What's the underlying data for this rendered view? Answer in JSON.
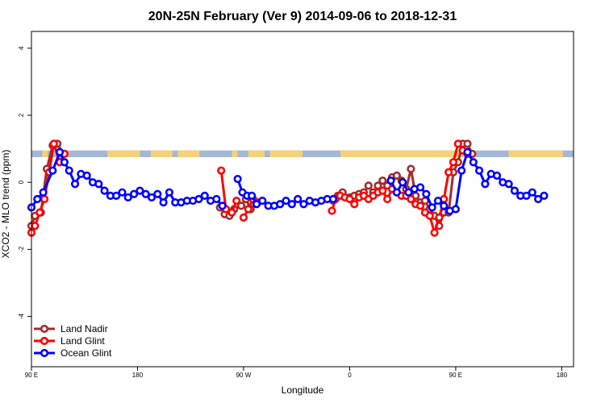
{
  "chart_data": {
    "type": "line",
    "title": "20N-25N February (Ver 9)   2014-09-06 to 2018-12-31",
    "xlabel": "Longitude",
    "ylabel": "XCO2 - MLO trend (ppm)",
    "xlim": [
      0,
      460
    ],
    "ylim": [
      -5.5,
      4.5
    ],
    "x_ticks": [
      {
        "value": 0,
        "label": "90 E"
      },
      {
        "value": 90,
        "label": "180"
      },
      {
        "value": 180,
        "label": "90 W"
      },
      {
        "value": 270,
        "label": "0"
      },
      {
        "value": 360,
        "label": "90 E"
      },
      {
        "value": 450,
        "label": "180"
      }
    ],
    "y_ticks": [
      {
        "value": -4,
        "label": "-4"
      },
      {
        "value": -2,
        "label": "-2"
      },
      {
        "value": 0,
        "label": "0"
      },
      {
        "value": 2,
        "label": "2"
      },
      {
        "value": 4,
        "label": "4"
      }
    ],
    "landmask_band": {
      "y_range": [
        0.75,
        0.95
      ],
      "ocean_color": "#a4b8d6",
      "land_color": "#f5d27a"
    },
    "legend_position": "bottom-left",
    "series": [
      {
        "name": "Land Nadir",
        "color": "#a52a2a",
        "segments": [
          [
            [
              0,
              -1.3
            ],
            [
              3,
              -1.0
            ],
            [
              8,
              -0.9
            ],
            [
              13,
              0.4
            ],
            [
              18,
              1.1
            ],
            [
              22,
              1.15
            ],
            [
              27,
              0.85
            ]
          ],
          [
            [
              160,
              -0.75
            ],
            [
              164,
              -0.95
            ],
            [
              168,
              -1.0
            ],
            [
              172,
              -0.8
            ],
            [
              178,
              -0.7
            ],
            [
              182,
              -0.5
            ],
            [
              186,
              -0.8
            ]
          ],
          [
            [
              256,
              -0.55
            ],
            [
              260,
              -0.4
            ],
            [
              264,
              -0.3
            ],
            [
              270,
              -0.45
            ],
            [
              274,
              -0.4
            ],
            [
              278,
              -0.35
            ],
            [
              282,
              -0.3
            ],
            [
              286,
              -0.1
            ],
            [
              290,
              -0.3
            ],
            [
              294,
              -0.1
            ],
            [
              298,
              0.05
            ],
            [
              302,
              -0.1
            ],
            [
              306,
              0.15
            ],
            [
              310,
              0.2
            ],
            [
              314,
              0.05
            ],
            [
              318,
              -0.2
            ],
            [
              322,
              0.4
            ],
            [
              326,
              -0.4
            ],
            [
              330,
              -0.6
            ],
            [
              334,
              -0.55
            ],
            [
              338,
              -0.8
            ],
            [
              342,
              -1.0
            ],
            [
              346,
              -1.3
            ],
            [
              350,
              -0.9
            ],
            [
              354,
              -0.9
            ],
            [
              358,
              0.3
            ],
            [
              362,
              0.6
            ],
            [
              366,
              1.15
            ],
            [
              370,
              1.15
            ],
            [
              374,
              0.85
            ]
          ]
        ]
      },
      {
        "name": "Land Glint",
        "color": "#ff0000",
        "segments": [
          [
            [
              0,
              -1.5
            ],
            [
              3,
              -1.3
            ],
            [
              7,
              -0.9
            ],
            [
              11,
              -0.5
            ],
            [
              15,
              0.3
            ],
            [
              19,
              1.15
            ],
            [
              24,
              0.6
            ],
            [
              28,
              0.85
            ]
          ],
          [
            [
              161,
              0.35
            ],
            [
              165,
              -0.8
            ],
            [
              170,
              -0.9
            ],
            [
              174,
              -0.55
            ]
          ],
          [
            [
              180,
              -1.05
            ],
            [
              184,
              -0.8
            ],
            [
              188,
              -0.5
            ],
            [
              192,
              -0.6
            ]
          ],
          [
            [
              255,
              -0.85
            ],
            [
              258,
              -0.5
            ],
            [
              262,
              -0.4
            ],
            [
              266,
              -0.45
            ],
            [
              270,
              -0.5
            ],
            [
              274,
              -0.65
            ],
            [
              278,
              -0.45
            ],
            [
              282,
              -0.4
            ],
            [
              286,
              -0.5
            ],
            [
              290,
              -0.4
            ],
            [
              294,
              -0.3
            ],
            [
              298,
              -0.25
            ],
            [
              302,
              -0.5
            ],
            [
              306,
              -0.2
            ],
            [
              310,
              -0.3
            ],
            [
              314,
              -0.4
            ],
            [
              318,
              -0.4
            ],
            [
              322,
              -0.5
            ],
            [
              326,
              -0.65
            ],
            [
              330,
              -0.7
            ],
            [
              334,
              -0.9
            ],
            [
              338,
              -1.0
            ],
            [
              342,
              -1.5
            ],
            [
              346,
              -1.05
            ],
            [
              350,
              -0.5
            ],
            [
              354,
              0.3
            ],
            [
              358,
              0.6
            ],
            [
              362,
              1.15
            ],
            [
              366,
              0.95
            ],
            [
              370,
              0.85
            ]
          ]
        ]
      },
      {
        "name": "Ocean Glint",
        "color": "#0000ff",
        "segments": [
          [
            [
              0,
              -0.75
            ],
            [
              5,
              -0.5
            ],
            [
              10,
              -0.3
            ],
            [
              18,
              0.35
            ],
            [
              24,
              0.9
            ],
            [
              28,
              0.6
            ],
            [
              32,
              0.35
            ],
            [
              37,
              -0.05
            ],
            [
              42,
              0.25
            ],
            [
              47,
              0.2
            ],
            [
              52,
              0.0
            ],
            [
              57,
              -0.05
            ],
            [
              62,
              -0.25
            ],
            [
              67,
              -0.4
            ],
            [
              72,
              -0.4
            ],
            [
              77,
              -0.3
            ],
            [
              82,
              -0.45
            ],
            [
              87,
              -0.35
            ],
            [
              92,
              -0.25
            ],
            [
              97,
              -0.35
            ],
            [
              102,
              -0.45
            ],
            [
              107,
              -0.35
            ],
            [
              112,
              -0.6
            ],
            [
              117,
              -0.3
            ],
            [
              122,
              -0.6
            ],
            [
              127,
              -0.6
            ],
            [
              132,
              -0.55
            ],
            [
              137,
              -0.55
            ],
            [
              142,
              -0.5
            ],
            [
              147,
              -0.4
            ],
            [
              152,
              -0.55
            ],
            [
              157,
              -0.5
            ],
            [
              162,
              -0.7
            ]
          ],
          [
            [
              175,
              0.1
            ],
            [
              179,
              -0.3
            ],
            [
              183,
              -0.4
            ],
            [
              187,
              -0.4
            ],
            [
              191,
              -0.65
            ],
            [
              196,
              -0.55
            ],
            [
              201,
              -0.7
            ],
            [
              206,
              -0.7
            ],
            [
              211,
              -0.65
            ],
            [
              216,
              -0.55
            ],
            [
              221,
              -0.65
            ],
            [
              226,
              -0.5
            ],
            [
              231,
              -0.65
            ],
            [
              236,
              -0.55
            ],
            [
              241,
              -0.6
            ],
            [
              246,
              -0.55
            ],
            [
              251,
              -0.5
            ],
            [
              256,
              -0.5
            ]
          ],
          [
            [
              305,
              0.05
            ],
            [
              310,
              -0.3
            ],
            [
              315,
              0.0
            ],
            [
              320,
              -0.3
            ],
            [
              325,
              -0.2
            ],
            [
              330,
              -0.15
            ],
            [
              335,
              -0.35
            ],
            [
              340,
              -0.75
            ],
            [
              345,
              -0.55
            ],
            [
              350,
              -0.7
            ],
            [
              355,
              -0.85
            ],
            [
              360,
              -0.8
            ],
            [
              365,
              0.35
            ],
            [
              370,
              0.9
            ],
            [
              375,
              0.6
            ],
            [
              380,
              0.35
            ],
            [
              385,
              -0.05
            ],
            [
              390,
              0.25
            ],
            [
              395,
              0.2
            ],
            [
              400,
              0.0
            ],
            [
              405,
              -0.05
            ],
            [
              410,
              -0.25
            ],
            [
              415,
              -0.4
            ],
            [
              420,
              -0.4
            ],
            [
              425,
              -0.3
            ],
            [
              430,
              -0.5
            ],
            [
              435,
              -0.4
            ]
          ]
        ]
      }
    ]
  }
}
